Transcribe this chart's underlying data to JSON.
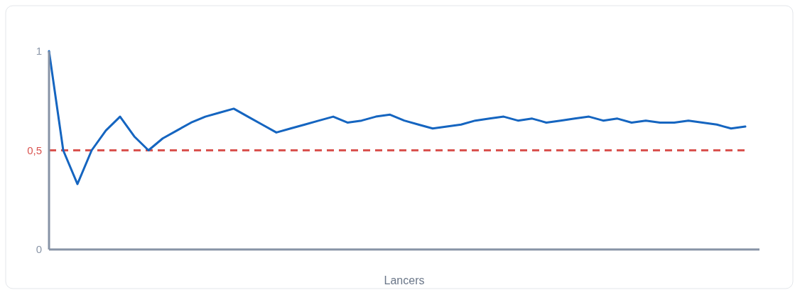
{
  "chart_data": {
    "type": "line",
    "xlabel": "Lancers",
    "categories": [
      null,
      null,
      null,
      null,
      null,
      null,
      null,
      null,
      null,
      null,
      null,
      null,
      null,
      null,
      null,
      null,
      null,
      null,
      null,
      null,
      null,
      null,
      null,
      null,
      null,
      null,
      null,
      null,
      null,
      null,
      null,
      null,
      null,
      null,
      null,
      null,
      null,
      null,
      null,
      null,
      null,
      null,
      null,
      null,
      null,
      null,
      null,
      null,
      null,
      null
    ],
    "series": [
      {
        "color": "#1565c0",
        "values": [
          1,
          0.5,
          0.33,
          0.5,
          0.6,
          0.67,
          0.57,
          0.5,
          0.56,
          0.6,
          0.64,
          0.67,
          0.69,
          0.71,
          0.67,
          0.63,
          0.59,
          0.61,
          0.63,
          0.65,
          0.67,
          0.64,
          0.65,
          0.67,
          0.68,
          0.65,
          0.63,
          0.61,
          0.62,
          0.63,
          0.65,
          0.66,
          0.67,
          0.65,
          0.66,
          0.64,
          0.65,
          0.66,
          0.67,
          0.65,
          0.66,
          0.64,
          0.65,
          0.64,
          0.64,
          0.65,
          0.64,
          0.63,
          0.61,
          0.62
        ]
      }
    ],
    "ylim": [
      0,
      1
    ],
    "yticks": [
      0,
      1
    ],
    "ref_lines": [
      {
        "axis": "y",
        "value": 0.5,
        "label": "0,5",
        "color": "#d9534f",
        "line_style": "dashed"
      }
    ],
    "grid": false,
    "marker": "none",
    "line_style": "solid"
  }
}
